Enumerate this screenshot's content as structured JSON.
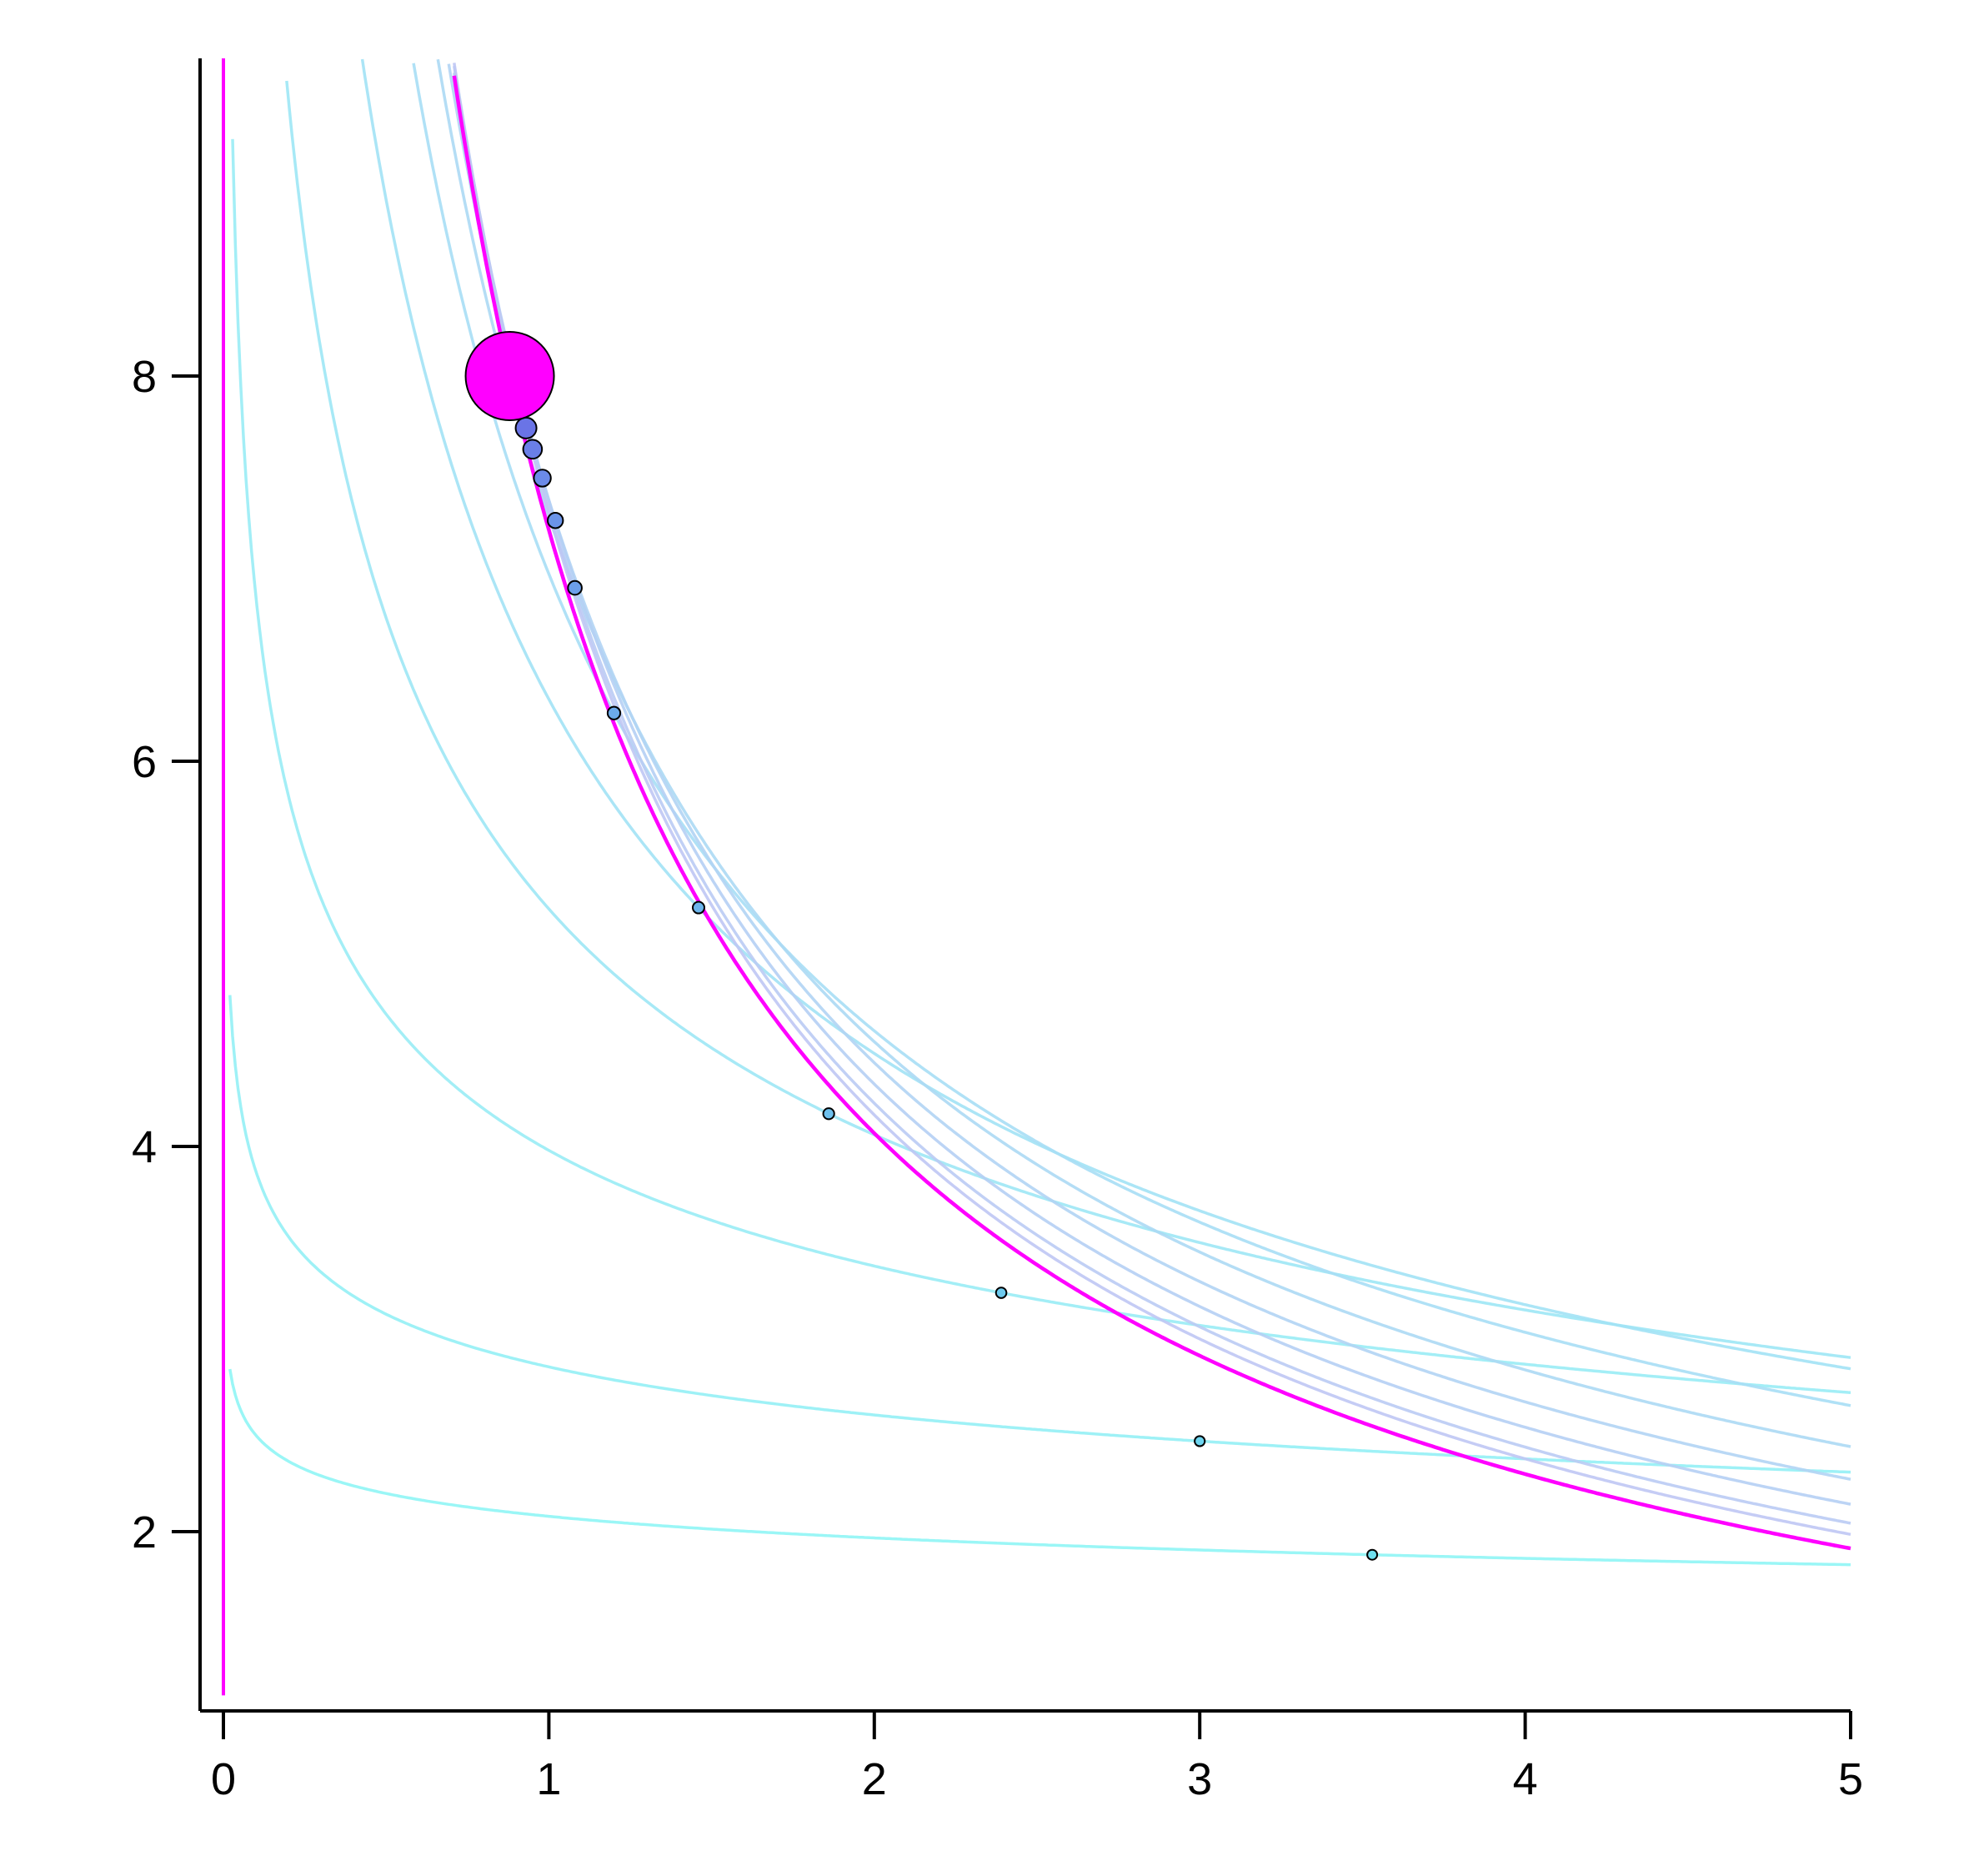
{
  "chart_data": {
    "type": "line",
    "title": "",
    "xlabel": "",
    "ylabel": "",
    "xlim": [
      -0.08,
      5
    ],
    "ylim": [
      1.07,
      9.6
    ],
    "x_ticks": [
      0,
      1,
      2,
      3,
      4,
      5
    ],
    "x_tick_labels": [
      "0",
      "1",
      "2",
      "3",
      "4",
      "5"
    ],
    "y_ticks": [
      2,
      4,
      6,
      8
    ],
    "y_tick_labels": [
      "2",
      "4",
      "6",
      "8"
    ],
    "grid": false,
    "legend": "none",
    "colors": {
      "highlight": "#ff00ff",
      "curve_start": "#8ff5f5",
      "curve_end": "#bfc6f4",
      "point_start": "#6ee0f0",
      "point_end": "#6a74e6"
    },
    "series": [
      {
        "curve_k": 0.0,
        "point": [
          3.53,
          1.88
        ],
        "point_radius": 0.0
      },
      {
        "curve_k": 0.01,
        "point": [
          3.0,
          2.47
        ],
        "point_radius": 0.0
      },
      {
        "curve_k": 0.03,
        "point": [
          2.39,
          3.24
        ],
        "point_radius": 0.0
      },
      {
        "curve_k": 0.055,
        "point": [
          1.86,
          4.17
        ],
        "point_radius": 0.0
      },
      {
        "curve_k": 0.08,
        "point": [
          1.46,
          5.24
        ],
        "point_radius": 0.0
      },
      {
        "curve_k": 0.1,
        "point": [
          1.2,
          6.25
        ],
        "point_radius": 0.0
      },
      {
        "curve_k": 0.115,
        "point": [
          1.08,
          6.9
        ],
        "point_radius": 0.0
      },
      {
        "curve_k": 0.125,
        "point": [
          1.02,
          7.25
        ],
        "point_radius": 0.0
      },
      {
        "curve_k": 0.132,
        "point": [
          0.98,
          7.47
        ],
        "point_radius": 0.0
      },
      {
        "curve_k": 0.137,
        "point": [
          0.95,
          7.62
        ],
        "point_radius": 0.0
      },
      {
        "curve_k": 0.14,
        "point": [
          0.93,
          7.73
        ],
        "point_radius": 0.0
      }
    ],
    "highlight": {
      "curve_k": 0.143,
      "point": [
        0.88,
        8.0
      ],
      "vertical_line_x": 0.0,
      "vertical_line_y_range": [
        1.15,
        9.6
      ]
    }
  }
}
